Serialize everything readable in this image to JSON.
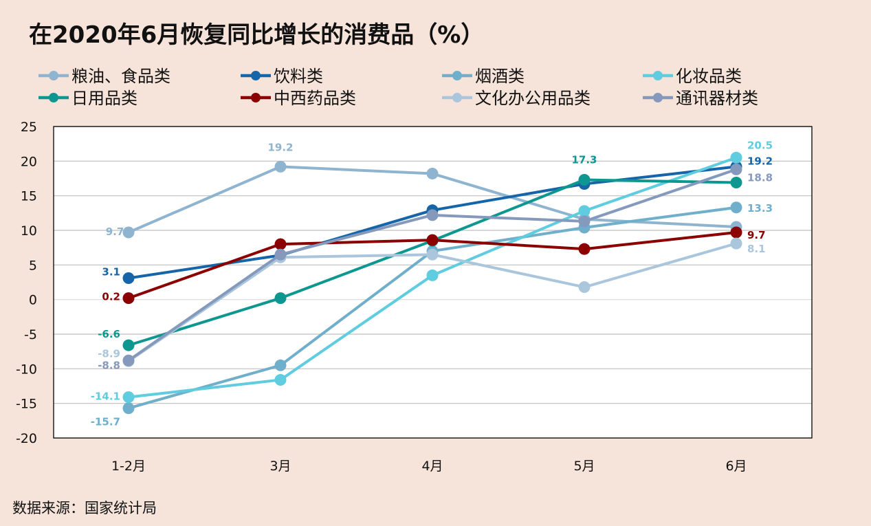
{
  "chart_data": {
    "type": "line",
    "title": "在2020年6月恢复同比增长的消费品（%）",
    "source": "数据来源：国家统计局",
    "categories": [
      "1-2月",
      "3月",
      "4月",
      "5月",
      "6月"
    ],
    "ylim": [
      -20,
      25
    ],
    "yticks": [
      25,
      20,
      15,
      10,
      5,
      0,
      -5,
      -10,
      -15,
      -20
    ],
    "grid": true,
    "legend_position": "top",
    "series": [
      {
        "name": "粮油、食品类",
        "color": "#8FB4CF",
        "values": [
          9.7,
          19.2,
          18.2,
          11.6,
          10.5
        ],
        "labels": [
          "9.7",
          "19.2",
          "",
          "",
          ""
        ]
      },
      {
        "name": "饮料类",
        "color": "#1565A8",
        "values": [
          3.1,
          6.4,
          12.9,
          16.7,
          19.2
        ],
        "labels": [
          "3.1",
          "",
          "",
          "",
          "19.2"
        ]
      },
      {
        "name": "烟酒类",
        "color": "#6FAFCB",
        "values": [
          -15.7,
          -9.5,
          7.0,
          10.4,
          13.3
        ],
        "labels": [
          "-15.7",
          "",
          "",
          "",
          "13.3"
        ]
      },
      {
        "name": "化妆品类",
        "color": "#5FCCDF",
        "values": [
          -14.1,
          -11.6,
          3.5,
          12.8,
          20.5
        ],
        "labels": [
          "-14.1",
          "",
          "",
          "",
          "20.5"
        ]
      },
      {
        "name": "日用品类",
        "color": "#0E9690",
        "values": [
          -6.6,
          0.2,
          8.5,
          17.3,
          16.9
        ],
        "labels": [
          "-6.6",
          "",
          "",
          "17.3",
          ""
        ]
      },
      {
        "name": "中西药品类",
        "color": "#8B0000",
        "values": [
          0.2,
          8.0,
          8.6,
          7.3,
          9.7
        ],
        "labels": [
          "0.2",
          "",
          "",
          "",
          "9.7"
        ]
      },
      {
        "name": "文化办公用品类",
        "color": "#A9C6DC",
        "values": [
          -8.9,
          6.1,
          6.5,
          1.8,
          8.1
        ],
        "labels": [
          "-8.9",
          "",
          "",
          "",
          "8.1"
        ]
      },
      {
        "name": "通讯器材类",
        "color": "#8599BC",
        "values": [
          -8.8,
          6.5,
          12.2,
          11.3,
          18.8
        ],
        "labels": [
          "-8.8",
          "",
          "",
          "",
          "18.8"
        ]
      }
    ]
  }
}
